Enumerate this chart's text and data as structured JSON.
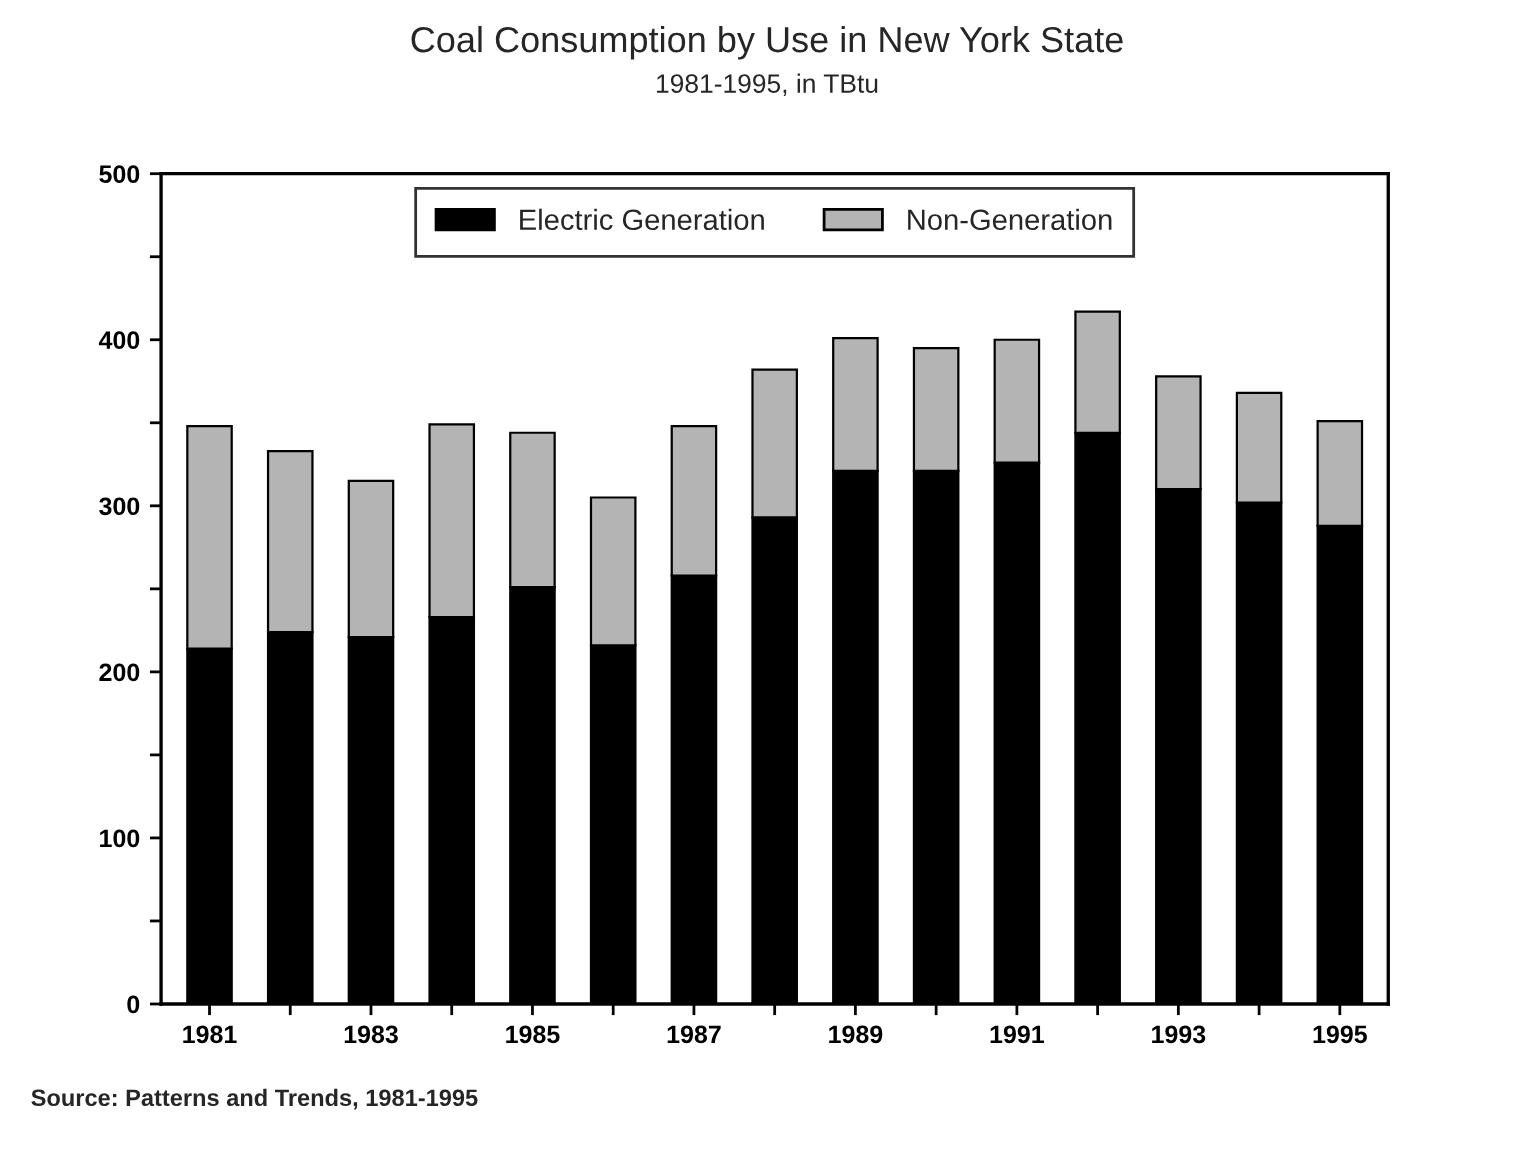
{
  "chart_data": {
    "type": "bar",
    "title": "Coal Consumption by Use in New York State",
    "subtitle": "1981-1995, in TBtu",
    "categories": [
      "1981",
      null,
      "1983",
      null,
      "1985",
      null,
      "1987",
      null,
      "1989",
      null,
      "1991",
      null,
      "1993",
      null,
      "1995"
    ],
    "stacked": true,
    "series": [
      {
        "name": "Electric Generation",
        "color": "#000000",
        "values": [
          214,
          224,
          221,
          233,
          251,
          216,
          258,
          293,
          321,
          321,
          326,
          344,
          310,
          302,
          288
        ]
      },
      {
        "name": "Non-Generation",
        "color": "#b4b4b4",
        "values": [
          134,
          109,
          94,
          116,
          93,
          89,
          90,
          89,
          80,
          74,
          74,
          73,
          68,
          66,
          63
        ]
      }
    ],
    "ylim": [
      0,
      500
    ],
    "yticks": [
      0,
      {
        "value": 50,
        "label": null
      },
      100,
      {
        "value": 150,
        "label": null
      },
      200,
      {
        "value": 250,
        "label": null
      },
      300,
      {
        "value": 350,
        "label": null
      },
      400,
      {
        "value": 450,
        "label": null
      },
      500
    ],
    "legend": "top",
    "grid": false,
    "annotations": [
      "Source: Patterns and Trends, 1981-1995"
    ]
  }
}
